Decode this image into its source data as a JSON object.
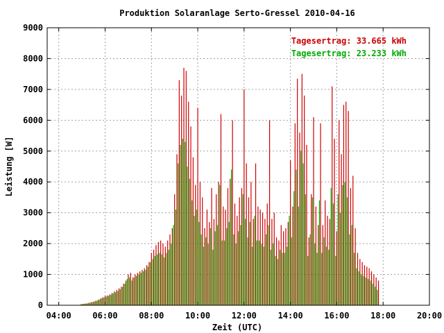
{
  "chart_data": {
    "type": "bar",
    "title": "Produktion Solaranlage Serto-Gressel 2010-04-16",
    "xlabel": "Zeit (UTC)",
    "ylabel": "Leistung [W]",
    "xlim": [
      3.5,
      20.0
    ],
    "ylim": [
      0,
      9000
    ],
    "x_ticks": [
      "04:00",
      "06:00",
      "08:00",
      "10:00",
      "12:00",
      "14:00",
      "16:00",
      "18:00",
      "20:00"
    ],
    "y_ticks": [
      "0",
      "1000",
      "2000",
      "3000",
      "4000",
      "5000",
      "6000",
      "7000",
      "8000",
      "9000"
    ],
    "grid": true,
    "annotations": [
      {
        "text": "Tagesertrag: 33.665 kWh",
        "color": "#cc0000"
      },
      {
        "text": "Tagesertrag: 23.233 kWh",
        "color": "#00aa00"
      }
    ],
    "colors": {
      "series_red": "#cc0000",
      "series_green": "#00bb00"
    },
    "x_hours": [
      5.0,
      5.1,
      5.2,
      5.3,
      5.4,
      5.5,
      5.6,
      5.7,
      5.8,
      5.9,
      6.0,
      6.1,
      6.2,
      6.3,
      6.4,
      6.5,
      6.6,
      6.7,
      6.8,
      6.9,
      7.0,
      7.1,
      7.2,
      7.3,
      7.4,
      7.5,
      7.6,
      7.7,
      7.8,
      7.9,
      8.0,
      8.1,
      8.2,
      8.3,
      8.4,
      8.5,
      8.6,
      8.7,
      8.8,
      8.9,
      9.0,
      9.1,
      9.2,
      9.3,
      9.4,
      9.5,
      9.6,
      9.7,
      9.8,
      9.9,
      10.0,
      10.1,
      10.2,
      10.3,
      10.4,
      10.5,
      10.6,
      10.7,
      10.8,
      10.9,
      11.0,
      11.1,
      11.2,
      11.3,
      11.4,
      11.5,
      11.6,
      11.7,
      11.8,
      11.9,
      12.0,
      12.1,
      12.2,
      12.3,
      12.4,
      12.5,
      12.6,
      12.7,
      12.8,
      12.9,
      13.0,
      13.1,
      13.2,
      13.3,
      13.4,
      13.5,
      13.6,
      13.7,
      13.8,
      13.9,
      14.0,
      14.1,
      14.2,
      14.3,
      14.4,
      14.5,
      14.6,
      14.7,
      14.8,
      14.9,
      15.0,
      15.1,
      15.2,
      15.3,
      15.4,
      15.5,
      15.6,
      15.7,
      15.8,
      15.9,
      16.0,
      16.1,
      16.2,
      16.3,
      16.4,
      16.5,
      16.6,
      16.7,
      16.8,
      16.9,
      17.0,
      17.1,
      17.2,
      17.3,
      17.4,
      17.5,
      17.6,
      17.7,
      17.8
    ],
    "series": [
      {
        "values": [
          40,
          50,
          60,
          80,
          100,
          120,
          150,
          180,
          220,
          260,
          300,
          320,
          350,
          400,
          450,
          500,
          550,
          600,
          700,
          800,
          1000,
          1050,
          900,
          1000,
          1050,
          1100,
          1150,
          1200,
          1300,
          1400,
          1700,
          1800,
          1950,
          2050,
          2100,
          2000,
          1900,
          2100,
          2300,
          2500,
          3600,
          4900,
          7300,
          6800,
          7700,
          7600,
          6600,
          5800,
          4800,
          3900,
          6400,
          4000,
          3500,
          2500,
          3100,
          2700,
          3800,
          2800,
          3600,
          4000,
          6200,
          3200,
          3100,
          3800,
          4100,
          6000,
          3300,
          2900,
          3500,
          3800,
          7000,
          4600,
          3500,
          4000,
          2800,
          4600,
          3200,
          3100,
          3000,
          2800,
          3300,
          6000,
          2800,
          3000,
          2200,
          2100,
          2600,
          2400,
          2500,
          2700,
          4700,
          3200,
          5900,
          7350,
          5600,
          7500,
          6800,
          5200,
          2200,
          3600,
          6100,
          3200,
          2600,
          5900,
          2600,
          3400,
          2900,
          2800,
          7100,
          5400,
          2400,
          6000,
          4900,
          6500,
          6600,
          6300,
          3800,
          4200,
          2500,
          1700,
          1500,
          1400,
          1300,
          1250,
          1200,
          1100,
          1000,
          900,
          800
        ]
      },
      {
        "values": [
          30,
          40,
          50,
          60,
          80,
          100,
          120,
          140,
          180,
          220,
          250,
          280,
          300,
          340,
          380,
          420,
          460,
          520,
          600,
          700,
          850,
          900,
          800,
          900,
          950,
          1000,
          1050,
          1100,
          1150,
          1250,
          1400,
          1500,
          1600,
          1650,
          1700,
          1650,
          1550,
          1700,
          1800,
          2000,
          2600,
          3100,
          4600,
          5200,
          5400,
          5300,
          4500,
          4100,
          3400,
          2900,
          3100,
          2700,
          2300,
          1900,
          2200,
          2000,
          2500,
          1800,
          2400,
          2600,
          3900,
          2100,
          2100,
          2500,
          2700,
          4400,
          2300,
          2000,
          2400,
          2600,
          3600,
          2800,
          2200,
          2700,
          1900,
          2900,
          2100,
          2100,
          2000,
          1900,
          2300,
          2600,
          1800,
          2000,
          1600,
          1500,
          1800,
          1700,
          1700,
          1900,
          2900,
          2200,
          3700,
          4400,
          3200,
          5000,
          4600,
          3600,
          1600,
          2300,
          3500,
          2000,
          1700,
          3400,
          1700,
          2200,
          1900,
          1800,
          3800,
          3300,
          1600,
          3600,
          3000,
          3900,
          4000,
          3500,
          2300,
          2600,
          1700,
          1200,
          1100,
          1000,
          950,
          900,
          850,
          800,
          700,
          600,
          500
        ]
      }
    ]
  }
}
